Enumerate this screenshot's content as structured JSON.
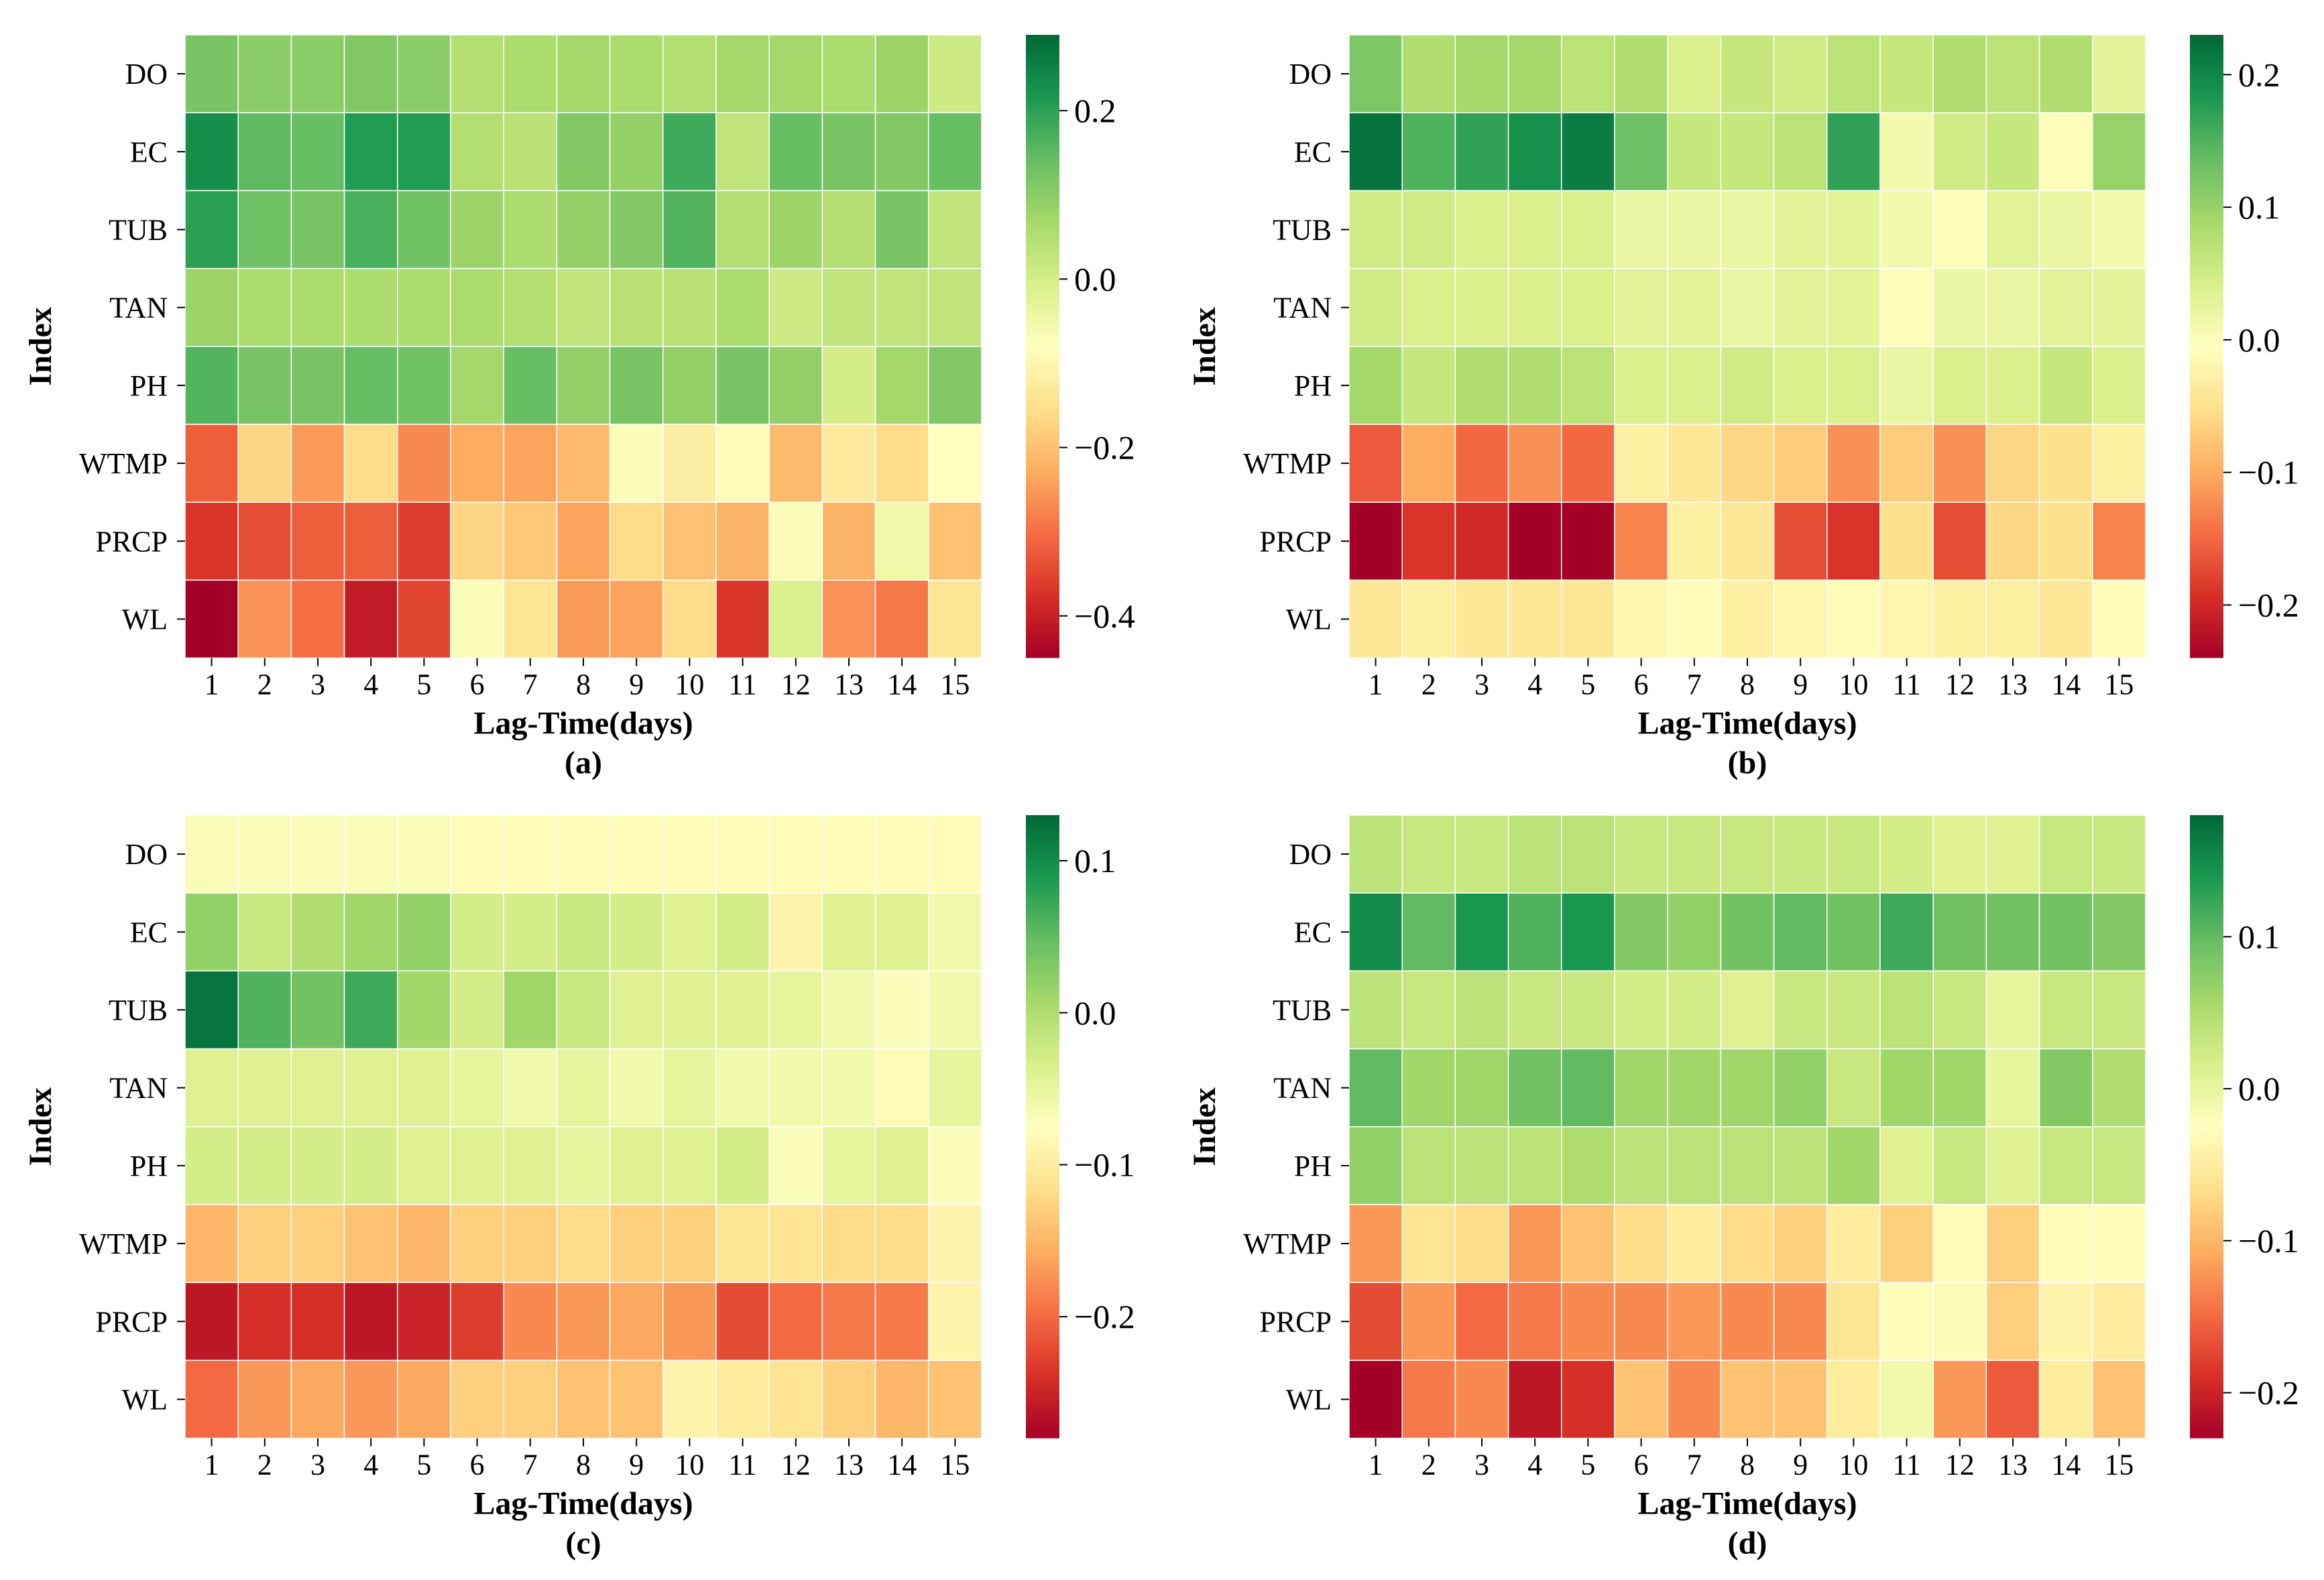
{
  "figure": {
    "colormap": "RdYlGn",
    "colormap_stops": [
      "#a50026",
      "#d73027",
      "#f46d43",
      "#fdae61",
      "#fee08b",
      "#ffffbf",
      "#d9ef8b",
      "#a6d96a",
      "#66bd63",
      "#1a9850",
      "#006837"
    ]
  },
  "chart_data": [
    {
      "type": "heatmap",
      "panel_label": "(a)",
      "xlabel": "Lag-Time(days)",
      "ylabel": "Index",
      "x_categories": [
        "1",
        "2",
        "3",
        "4",
        "5",
        "6",
        "7",
        "8",
        "9",
        "10",
        "11",
        "12",
        "13",
        "14",
        "15"
      ],
      "y_categories": [
        "DO",
        "EC",
        "TUB",
        "TAN",
        "PH",
        "WTMP",
        "PRCP",
        "WL"
      ],
      "vmin": -0.45,
      "vmax": 0.29,
      "colorbar_ticks": [
        0.2,
        0.0,
        -0.2,
        -0.4
      ],
      "colorbar_tick_labels": [
        "0.2",
        "0.0",
        "−0.2",
        "−0.4"
      ],
      "values": [
        [
          0.12,
          0.1,
          0.1,
          0.11,
          0.1,
          0.05,
          0.06,
          0.07,
          0.06,
          0.05,
          0.07,
          0.07,
          0.06,
          0.08,
          0.01
        ],
        [
          0.23,
          0.15,
          0.14,
          0.21,
          0.21,
          0.05,
          0.04,
          0.11,
          0.09,
          0.18,
          0.03,
          0.14,
          0.12,
          0.11,
          0.14
        ],
        [
          0.2,
          0.13,
          0.12,
          0.17,
          0.13,
          0.08,
          0.06,
          0.09,
          0.11,
          0.16,
          0.05,
          0.08,
          0.05,
          0.12,
          0.03
        ],
        [
          0.08,
          0.06,
          0.06,
          0.06,
          0.06,
          0.06,
          0.05,
          0.03,
          0.04,
          0.04,
          0.06,
          0.01,
          0.03,
          0.03,
          0.03
        ],
        [
          0.16,
          0.12,
          0.12,
          0.14,
          0.13,
          0.07,
          0.14,
          0.09,
          0.12,
          0.09,
          0.12,
          0.09,
          0.0,
          0.07,
          0.11
        ],
        [
          -0.32,
          -0.17,
          -0.25,
          -0.16,
          -0.27,
          -0.23,
          -0.24,
          -0.21,
          -0.07,
          -0.12,
          -0.09,
          -0.21,
          -0.13,
          -0.16,
          -0.08
        ],
        [
          -0.37,
          -0.34,
          -0.32,
          -0.32,
          -0.36,
          -0.17,
          -0.19,
          -0.24,
          -0.16,
          -0.2,
          -0.22,
          -0.07,
          -0.22,
          -0.05,
          -0.2
        ],
        [
          -0.45,
          -0.26,
          -0.3,
          -0.41,
          -0.35,
          -0.07,
          -0.14,
          -0.25,
          -0.24,
          -0.16,
          -0.37,
          -0.01,
          -0.26,
          -0.29,
          -0.14
        ]
      ]
    },
    {
      "type": "heatmap",
      "panel_label": "(b)",
      "xlabel": "Lag-Time(days)",
      "ylabel": "Index",
      "x_categories": [
        "1",
        "2",
        "3",
        "4",
        "5",
        "6",
        "7",
        "8",
        "9",
        "10",
        "11",
        "12",
        "13",
        "14",
        "15"
      ],
      "y_categories": [
        "DO",
        "EC",
        "TUB",
        "TAN",
        "PH",
        "WTMP",
        "PRCP",
        "WL"
      ],
      "vmin": -0.24,
      "vmax": 0.23,
      "colorbar_ticks": [
        0.2,
        0.1,
        0.0,
        -0.1,
        -0.2
      ],
      "colorbar_tick_labels": [
        "0.2",
        "0.1",
        "0.0",
        "−0.1",
        "−0.2"
      ],
      "values": [
        [
          0.12,
          0.08,
          0.09,
          0.09,
          0.07,
          0.08,
          0.04,
          0.06,
          0.05,
          0.07,
          0.06,
          0.08,
          0.07,
          0.08,
          0.03
        ],
        [
          0.22,
          0.15,
          0.17,
          0.19,
          0.21,
          0.13,
          0.06,
          0.06,
          0.07,
          0.17,
          0.01,
          0.05,
          0.06,
          0.0,
          0.1
        ],
        [
          0.05,
          0.05,
          0.04,
          0.04,
          0.04,
          0.02,
          0.02,
          0.02,
          0.03,
          0.03,
          0.01,
          0.0,
          0.03,
          0.02,
          0.01
        ],
        [
          0.05,
          0.04,
          0.04,
          0.04,
          0.04,
          0.03,
          0.03,
          0.02,
          0.03,
          0.03,
          0.0,
          0.02,
          0.02,
          0.03,
          0.03
        ],
        [
          0.09,
          0.06,
          0.08,
          0.08,
          0.07,
          0.04,
          0.04,
          0.05,
          0.04,
          0.04,
          0.02,
          0.04,
          0.04,
          0.06,
          0.04
        ],
        [
          -0.16,
          -0.1,
          -0.15,
          -0.12,
          -0.15,
          -0.03,
          -0.04,
          -0.06,
          -0.07,
          -0.12,
          -0.07,
          -0.12,
          -0.06,
          -0.05,
          -0.03
        ],
        [
          -0.24,
          -0.19,
          -0.2,
          -0.24,
          -0.24,
          -0.13,
          -0.03,
          -0.04,
          -0.17,
          -0.19,
          -0.05,
          -0.17,
          -0.06,
          -0.05,
          -0.13
        ],
        [
          -0.04,
          -0.03,
          -0.04,
          -0.04,
          -0.04,
          -0.02,
          -0.01,
          -0.03,
          -0.02,
          -0.01,
          -0.02,
          -0.03,
          -0.03,
          -0.04,
          -0.01
        ]
      ]
    },
    {
      "type": "heatmap",
      "panel_label": "(c)",
      "xlabel": "Lag-Time(days)",
      "ylabel": "Index",
      "x_categories": [
        "1",
        "2",
        "3",
        "4",
        "5",
        "6",
        "7",
        "8",
        "9",
        "10",
        "11",
        "12",
        "13",
        "14",
        "15"
      ],
      "y_categories": [
        "DO",
        "EC",
        "TUB",
        "TAN",
        "PH",
        "WTMP",
        "PRCP",
        "WL"
      ],
      "vmin": -0.28,
      "vmax": 0.13,
      "colorbar_ticks": [
        0.1,
        0.0,
        -0.1,
        -0.2
      ],
      "colorbar_tick_labels": [
        "0.1",
        "0.0",
        "−0.1",
        "−0.2"
      ],
      "values": [
        [
          -0.07,
          -0.07,
          -0.07,
          -0.07,
          -0.07,
          -0.08,
          -0.08,
          -0.08,
          -0.08,
          -0.08,
          -0.08,
          -0.08,
          -0.08,
          -0.08,
          -0.08
        ],
        [
          0.02,
          -0.02,
          0.0,
          0.01,
          0.02,
          -0.03,
          -0.03,
          -0.02,
          -0.03,
          -0.04,
          -0.03,
          -0.09,
          -0.04,
          -0.04,
          -0.06
        ],
        [
          0.12,
          0.06,
          0.04,
          0.07,
          0.01,
          -0.03,
          0.01,
          -0.02,
          -0.04,
          -0.04,
          -0.04,
          -0.05,
          -0.06,
          -0.07,
          -0.06
        ],
        [
          -0.04,
          -0.04,
          -0.04,
          -0.04,
          -0.04,
          -0.05,
          -0.06,
          -0.05,
          -0.06,
          -0.05,
          -0.06,
          -0.06,
          -0.06,
          -0.08,
          -0.05
        ],
        [
          -0.03,
          -0.03,
          -0.03,
          -0.03,
          -0.04,
          -0.04,
          -0.04,
          -0.05,
          -0.04,
          -0.04,
          -0.03,
          -0.07,
          -0.05,
          -0.04,
          -0.07
        ],
        [
          -0.15,
          -0.13,
          -0.13,
          -0.14,
          -0.15,
          -0.13,
          -0.13,
          -0.12,
          -0.13,
          -0.13,
          -0.11,
          -0.11,
          -0.12,
          -0.12,
          -0.09
        ],
        [
          -0.26,
          -0.24,
          -0.24,
          -0.26,
          -0.25,
          -0.23,
          -0.18,
          -0.17,
          -0.16,
          -0.17,
          -0.22,
          -0.2,
          -0.19,
          -0.19,
          -0.09
        ],
        [
          -0.2,
          -0.17,
          -0.16,
          -0.17,
          -0.16,
          -0.13,
          -0.13,
          -0.14,
          -0.14,
          -0.09,
          -0.1,
          -0.11,
          -0.13,
          -0.15,
          -0.14
        ]
      ]
    },
    {
      "type": "heatmap",
      "panel_label": "(d)",
      "xlabel": "Lag-Time(days)",
      "ylabel": "Index",
      "x_categories": [
        "1",
        "2",
        "3",
        "4",
        "5",
        "6",
        "7",
        "8",
        "9",
        "10",
        "11",
        "12",
        "13",
        "14",
        "15"
      ],
      "y_categories": [
        "DO",
        "EC",
        "TUB",
        "TAN",
        "PH",
        "WTMP",
        "PRCP",
        "WL"
      ],
      "vmin": -0.23,
      "vmax": 0.18,
      "colorbar_ticks": [
        0.1,
        0.0,
        -0.1,
        -0.2
      ],
      "colorbar_tick_labels": [
        "0.1",
        "0.0",
        "−0.1",
        "−0.2"
      ],
      "values": [
        [
          0.04,
          0.03,
          0.03,
          0.04,
          0.04,
          0.03,
          0.03,
          0.03,
          0.03,
          0.03,
          0.02,
          0.01,
          0.01,
          0.03,
          0.03
        ],
        [
          0.15,
          0.1,
          0.14,
          0.11,
          0.14,
          0.08,
          0.07,
          0.09,
          0.1,
          0.09,
          0.12,
          0.09,
          0.09,
          0.09,
          0.08
        ],
        [
          0.04,
          0.03,
          0.04,
          0.03,
          0.03,
          0.02,
          0.02,
          0.01,
          0.03,
          0.03,
          0.04,
          0.03,
          0.0,
          0.03,
          0.03
        ],
        [
          0.1,
          0.06,
          0.06,
          0.09,
          0.1,
          0.06,
          0.06,
          0.06,
          0.07,
          0.03,
          0.06,
          0.06,
          0.0,
          0.08,
          0.05
        ],
        [
          0.07,
          0.04,
          0.04,
          0.04,
          0.05,
          0.04,
          0.04,
          0.04,
          0.04,
          0.06,
          0.01,
          0.03,
          0.01,
          0.03,
          0.03
        ],
        [
          -0.12,
          -0.06,
          -0.07,
          -0.12,
          -0.09,
          -0.07,
          -0.05,
          -0.07,
          -0.08,
          -0.05,
          -0.08,
          -0.03,
          -0.08,
          -0.03,
          -0.03
        ],
        [
          -0.17,
          -0.12,
          -0.15,
          -0.14,
          -0.13,
          -0.13,
          -0.12,
          -0.13,
          -0.13,
          -0.06,
          -0.03,
          -0.02,
          -0.08,
          -0.04,
          -0.05
        ],
        [
          -0.23,
          -0.14,
          -0.13,
          -0.21,
          -0.19,
          -0.09,
          -0.13,
          -0.09,
          -0.09,
          -0.05,
          -0.01,
          -0.12,
          -0.16,
          -0.05,
          -0.09
        ]
      ]
    }
  ]
}
